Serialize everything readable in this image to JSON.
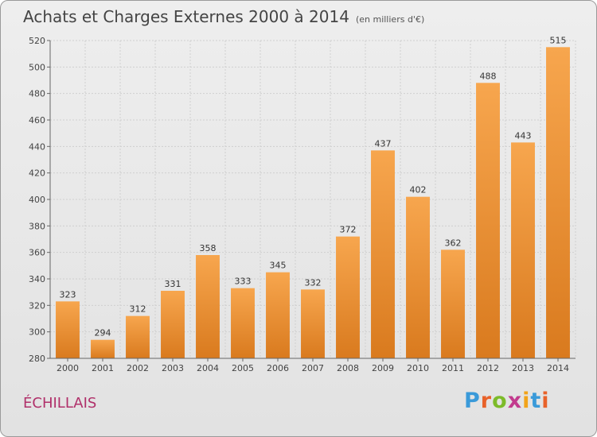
{
  "header": {
    "title": "Achats et Charges Externes 2000 à 2014",
    "subtitle": "(en milliers d'€)"
  },
  "commune": "ÉCHILLAIS",
  "logo": {
    "text": "Proxiti",
    "letter_colors": [
      "#3a9ad9",
      "#e8622a",
      "#7dbb2a",
      "#c23b8e",
      "#f2a31a",
      "#3a9ad9",
      "#e8622a"
    ]
  },
  "colors": {
    "bar_light": "#f7a64e",
    "bar_dark": "#d97a1e",
    "commune_text": "#b0306a"
  },
  "chart_data": {
    "type": "bar",
    "title": "Achats et Charges Externes 2000 à 2014",
    "subtitle": "(en milliers d'€)",
    "xlabel": "",
    "ylabel": "",
    "categories": [
      "2000",
      "2001",
      "2002",
      "2003",
      "2004",
      "2005",
      "2006",
      "2007",
      "2008",
      "2009",
      "2010",
      "2011",
      "2012",
      "2013",
      "2014"
    ],
    "values": [
      323,
      294,
      312,
      331,
      358,
      333,
      345,
      332,
      372,
      437,
      402,
      362,
      488,
      443,
      515
    ],
    "ylim": [
      280,
      520
    ],
    "yticks": [
      280,
      300,
      320,
      340,
      360,
      380,
      400,
      420,
      440,
      460,
      480,
      500,
      520
    ],
    "grid": true,
    "data_labels": true
  }
}
